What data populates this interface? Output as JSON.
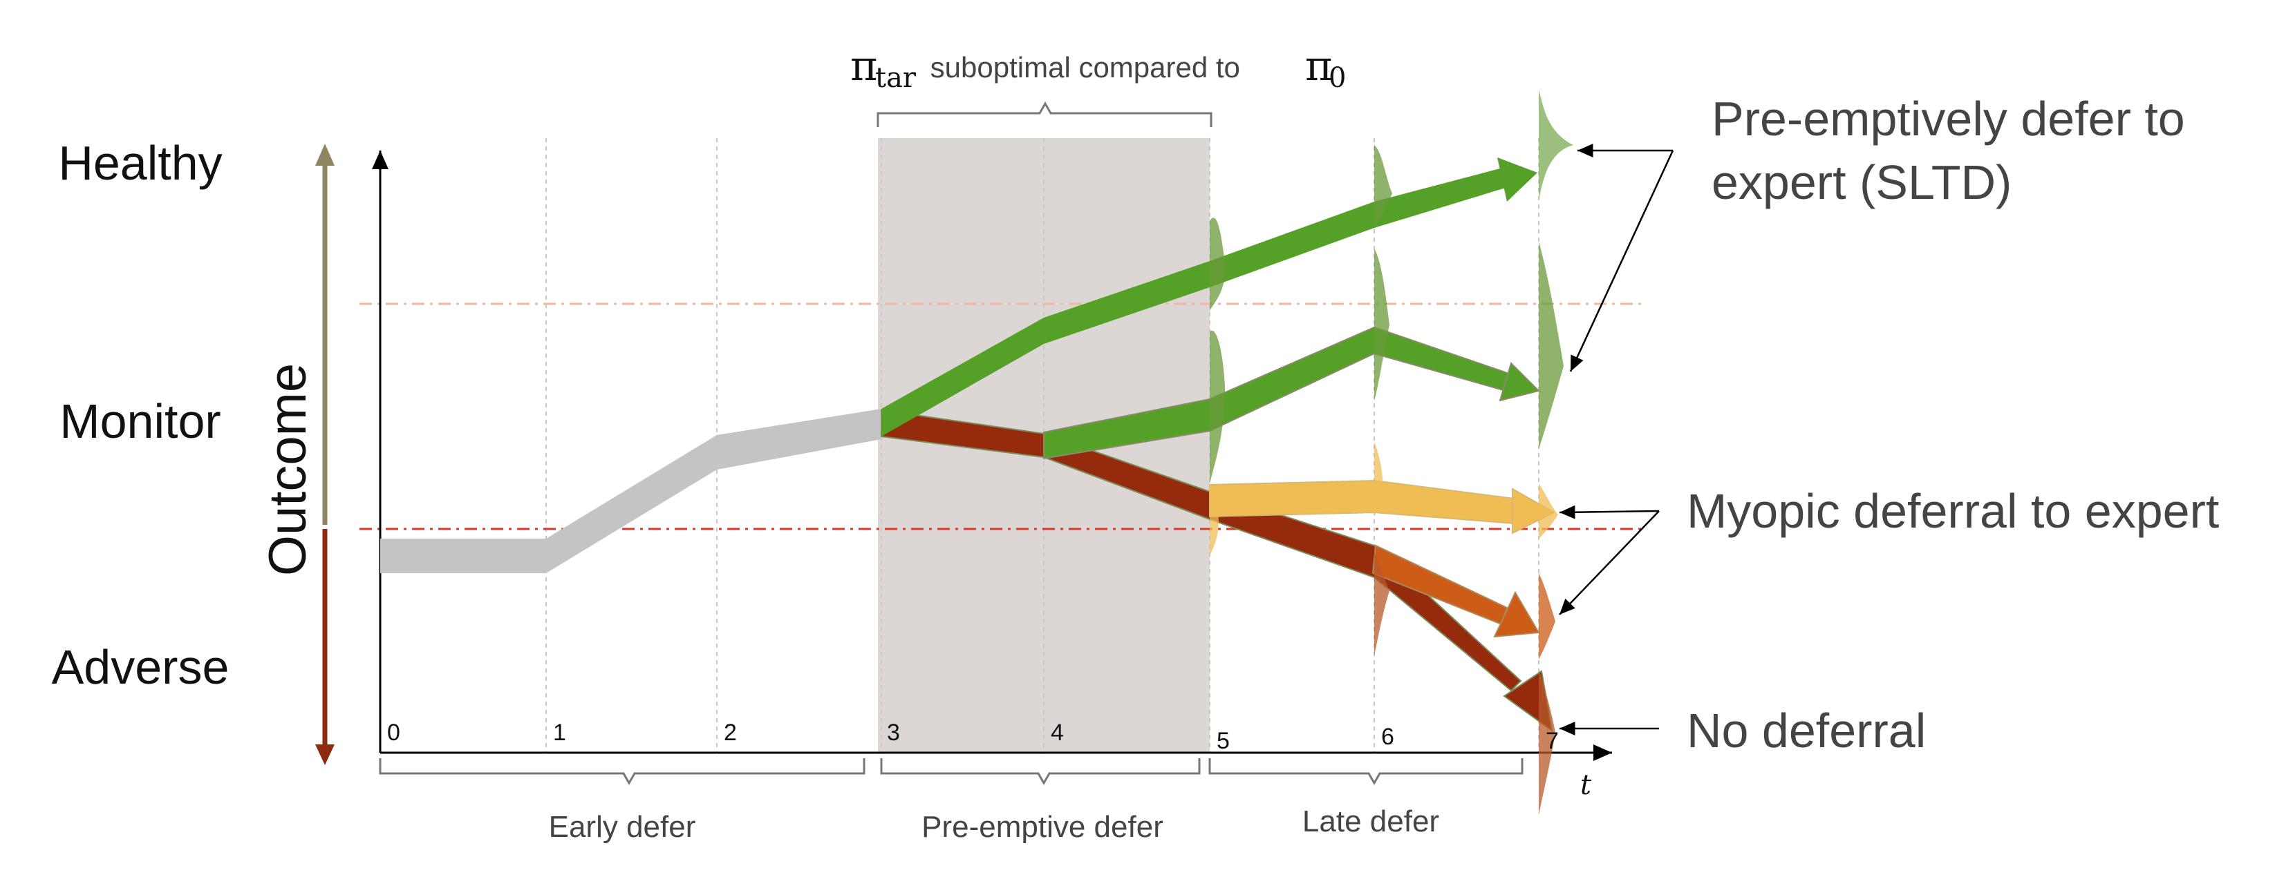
{
  "outcome_axis": {
    "title": "Outcome",
    "levels": [
      "Healthy",
      "Monitor",
      "Adverse"
    ]
  },
  "time_axis": {
    "label": "t",
    "ticks": [
      "0",
      "1",
      "2",
      "3",
      "4",
      "5",
      "6",
      "7"
    ]
  },
  "top_annotation": {
    "pi_tar_symbol": "π",
    "pi_tar_sub": "tar",
    "middle_text": " suboptimal compared to ",
    "pi_0_symbol": "π",
    "pi_0_sub": "0"
  },
  "phases": [
    {
      "label": "Early defer"
    },
    {
      "label": "Pre-emptive defer"
    },
    {
      "label": "Late defer"
    }
  ],
  "outcome_labels": {
    "preemptive_line1": "Pre-emptively defer to",
    "preemptive_line2": "expert (SLTD)",
    "myopic": "Myopic deferral to expert",
    "none": "No deferral"
  },
  "colors": {
    "gray_path": "#c4c4c4",
    "green": "#55a026",
    "green_dark": "#6b9a3a",
    "dark_red": "#952a0c",
    "orange": "#cc5c18",
    "yellow": "#f0bd55",
    "shade": "#dcd7d5",
    "threshold_upper": "#f0b8a0",
    "threshold_lower": "#d83a2a",
    "axis_up": "#8d8660",
    "axis_down": "#8e2a10"
  }
}
